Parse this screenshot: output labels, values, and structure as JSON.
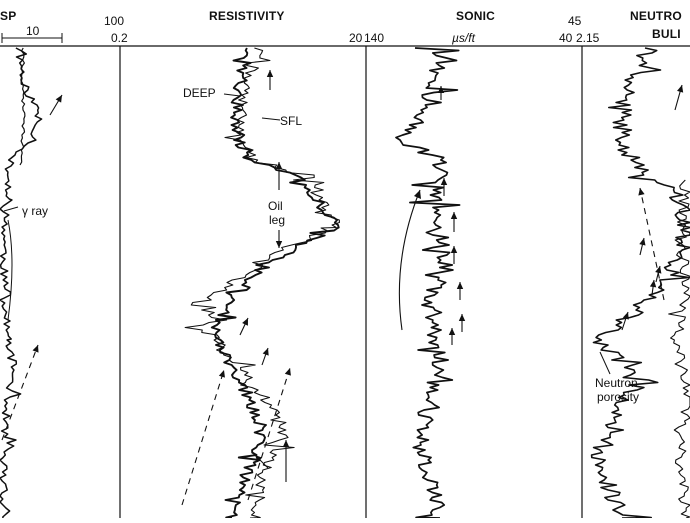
{
  "chart_data": [
    {
      "type": "line",
      "track": "sp-gamma",
      "title": "SP",
      "scale_label": "10",
      "annotations": [
        "γ ray"
      ],
      "series": []
    },
    {
      "type": "line",
      "track": "resistivity",
      "title": "RESISTIVITY",
      "scale_left": "100",
      "range_min": "0.2",
      "range_max": "20",
      "annotations": [
        "DEEP",
        "SFL",
        "Oil",
        "leg"
      ],
      "series": [
        {
          "name": "DEEP",
          "values": []
        },
        {
          "name": "SFL",
          "values": []
        }
      ]
    },
    {
      "type": "line",
      "track": "sonic",
      "title": "SONIC",
      "range_min": "140",
      "unit": "µs/ft",
      "range_max": "40",
      "series": []
    },
    {
      "type": "line",
      "track": "neutron-bulk",
      "title": "NEUTRO",
      "subtitle": "BULI",
      "scale_left": "45",
      "range_min": "2.15",
      "annotations": [
        "Neutron",
        "porosity"
      ],
      "series": [
        {
          "name": "Neutron porosity",
          "values": []
        }
      ]
    }
  ],
  "colors": {
    "trace": "#111111",
    "gridline": "#333333",
    "background": "#ffffff"
  }
}
